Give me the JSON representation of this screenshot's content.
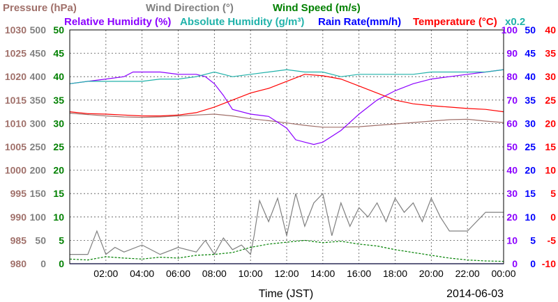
{
  "chart_data": {
    "type": "line",
    "date": "2014-06-03",
    "xlabel": "Time (JST)",
    "x_ticks": [
      "02:00",
      "04:00",
      "06:00",
      "08:00",
      "10:00",
      "12:00",
      "14:00",
      "16:00",
      "18:00",
      "20:00",
      "22:00",
      "00:00"
    ],
    "x_range_hours": [
      0,
      24
    ],
    "grid": true,
    "titles_row1": [
      {
        "text": "Pressure (hPa)",
        "color": "#a0706a"
      },
      {
        "text": "Wind Direction (°)",
        "color": "#808080"
      },
      {
        "text": "Wind Speed (m/s)",
        "color": "#008000"
      }
    ],
    "titles_row2": [
      {
        "text": "Relative Humidity (%)",
        "color": "#8b00ff"
      },
      {
        "text": "Absolute Humidity (g/m³)",
        "color": "#20b2aa"
      },
      {
        "text": "Rain Rate(mm/h)",
        "color": "#0000ff"
      },
      {
        "text": "Temperature (°C)",
        "color": "#ff0000"
      },
      {
        "text": "x0.2",
        "color": "#20b2aa"
      }
    ],
    "axes": {
      "pressure": {
        "range": [
          980,
          1030
        ],
        "ticks": [
          "1030",
          "1025",
          "1020",
          "1015",
          "1010",
          "1005",
          "1000",
          "995",
          "990",
          "985",
          "980"
        ],
        "color": "#a0706a"
      },
      "wind_direction": {
        "range": [
          0,
          500
        ],
        "ticks": [
          "500",
          "450",
          "400",
          "350",
          "300",
          "250",
          "200",
          "150",
          "100",
          "50",
          "0"
        ],
        "color": "#808080"
      },
      "wind_speed": {
        "range": [
          0,
          50
        ],
        "ticks": [
          "50",
          "45",
          "40",
          "35",
          "30",
          "25",
          "20",
          "15",
          "10",
          "5",
          "0"
        ],
        "color": "#008000"
      },
      "relative_humidity": {
        "range": [
          0,
          100
        ],
        "ticks": [
          "100",
          "90",
          "80",
          "70",
          "60",
          "50",
          "40",
          "30",
          "20",
          "10",
          "0"
        ],
        "color": "#8b00ff"
      },
      "rain_rate": {
        "range": [
          0,
          50
        ],
        "ticks": [
          "50",
          "45",
          "40",
          "35",
          "30",
          "25",
          "20",
          "15",
          "10",
          "5",
          "0"
        ],
        "color": "#0000ff"
      },
      "temperature": {
        "range": [
          -10,
          40
        ],
        "ticks": [
          "40",
          "35",
          "30",
          "25",
          "20",
          "15",
          "10",
          "5",
          "0",
          "-5",
          "-10"
        ],
        "color": "#ff0000"
      }
    },
    "series": [
      {
        "name": "Pressure (hPa)",
        "axis": "pressure",
        "color": "#a0706a",
        "x": [
          0,
          1,
          2,
          3,
          4,
          5,
          6,
          7,
          8,
          9,
          10,
          11,
          12,
          13,
          14,
          15,
          16,
          17,
          18,
          19,
          20,
          21,
          22,
          23,
          24
        ],
        "values": [
          1012.2,
          1011.9,
          1011.6,
          1011.4,
          1011.3,
          1011.4,
          1011.6,
          1011.8,
          1012.0,
          1011.6,
          1011.0,
          1010.6,
          1010.1,
          1009.6,
          1009.2,
          1009.2,
          1009.3,
          1009.6,
          1009.9,
          1010.2,
          1010.5,
          1010.8,
          1010.9,
          1010.5,
          1010.2
        ]
      },
      {
        "name": "Relative Humidity (%)",
        "axis": "relative_humidity",
        "color": "#8b00ff",
        "x": [
          0,
          1,
          2,
          3,
          3.5,
          4,
          5,
          6,
          7,
          7.5,
          8,
          8.5,
          9,
          10,
          11,
          12,
          12.5,
          13,
          13.5,
          14,
          15,
          16,
          17,
          18,
          19,
          20,
          21,
          22,
          23,
          24
        ],
        "values": [
          77,
          78,
          79,
          80,
          82,
          82,
          82,
          81,
          81,
          80,
          77,
          72,
          66,
          64,
          63,
          58,
          53,
          52,
          51,
          52,
          57,
          64,
          70,
          74,
          77,
          79,
          80,
          81,
          82,
          83
        ]
      },
      {
        "name": "Absolute Humidity (g/m³) x0.2",
        "axis": "relative_humidity",
        "color": "#20b2aa",
        "x": [
          0,
          1,
          2,
          3,
          4,
          5,
          6,
          7,
          8,
          9,
          10,
          11,
          12,
          13,
          14,
          15,
          16,
          17,
          18,
          19,
          20,
          21,
          22,
          23,
          24
        ],
        "values": [
          77,
          78,
          78,
          78,
          78,
          79,
          79,
          80,
          82,
          80,
          81,
          82,
          83,
          82,
          82,
          80,
          81,
          81,
          81,
          81,
          82,
          82,
          82,
          82,
          83
        ]
      },
      {
        "name": "Temperature (°C)",
        "axis": "temperature",
        "color": "#ff0000",
        "x": [
          0,
          1,
          2,
          3,
          4,
          5,
          6,
          7,
          8,
          9,
          10,
          11,
          12,
          13,
          14,
          15,
          16,
          17,
          18,
          19,
          20,
          21,
          22,
          23,
          24
        ],
        "values": [
          22.5,
          22.1,
          22.0,
          21.8,
          21.6,
          21.6,
          21.8,
          22.3,
          23.5,
          25.0,
          26.5,
          27.5,
          29.0,
          30.5,
          30.2,
          29.5,
          28.0,
          26.5,
          25.0,
          24.2,
          23.8,
          23.5,
          23.2,
          23.0,
          22.5
        ]
      },
      {
        "name": "Wind Direction (°)",
        "axis": "wind_direction",
        "color": "#808080",
        "x": [
          0,
          1,
          1.5,
          2,
          2.5,
          3,
          4,
          5,
          6,
          7,
          7.5,
          8,
          8.5,
          9,
          9.5,
          10,
          10.2,
          10.5,
          11,
          11.5,
          12,
          12.5,
          13,
          13.5,
          14,
          14.5,
          15,
          15.5,
          16,
          16.5,
          17,
          17.5,
          18,
          18.5,
          19,
          19.5,
          20,
          20.5,
          21,
          22,
          23,
          24
        ],
        "values": [
          20,
          20,
          70,
          20,
          35,
          25,
          40,
          20,
          35,
          25,
          50,
          20,
          55,
          30,
          40,
          20,
          60,
          135,
          90,
          140,
          60,
          150,
          80,
          130,
          150,
          60,
          130,
          80,
          120,
          100,
          130,
          90,
          140,
          110,
          130,
          90,
          140,
          100,
          70,
          70,
          110,
          110
        ]
      },
      {
        "name": "Wind Speed (m/s)",
        "axis": "wind_speed",
        "color": "#008000",
        "x": [
          0,
          1,
          2,
          3,
          4,
          5,
          6,
          7,
          8,
          9,
          10,
          11,
          12,
          13,
          14,
          15,
          16,
          17,
          18,
          19,
          20,
          21,
          22,
          23,
          24
        ],
        "values": [
          1.0,
          0.8,
          1.5,
          1.2,
          1.0,
          1.4,
          1.2,
          1.8,
          2.0,
          2.4,
          3.5,
          4.2,
          4.6,
          5.0,
          4.5,
          4.8,
          4.2,
          3.8,
          3.0,
          2.4,
          1.8,
          1.2,
          0.8,
          0.6,
          0.5
        ]
      },
      {
        "name": "Rain Rate(mm/h)",
        "axis": "rain_rate",
        "color": "#0000ff",
        "x": [
          0,
          24
        ],
        "values": [
          0,
          0
        ]
      }
    ]
  }
}
